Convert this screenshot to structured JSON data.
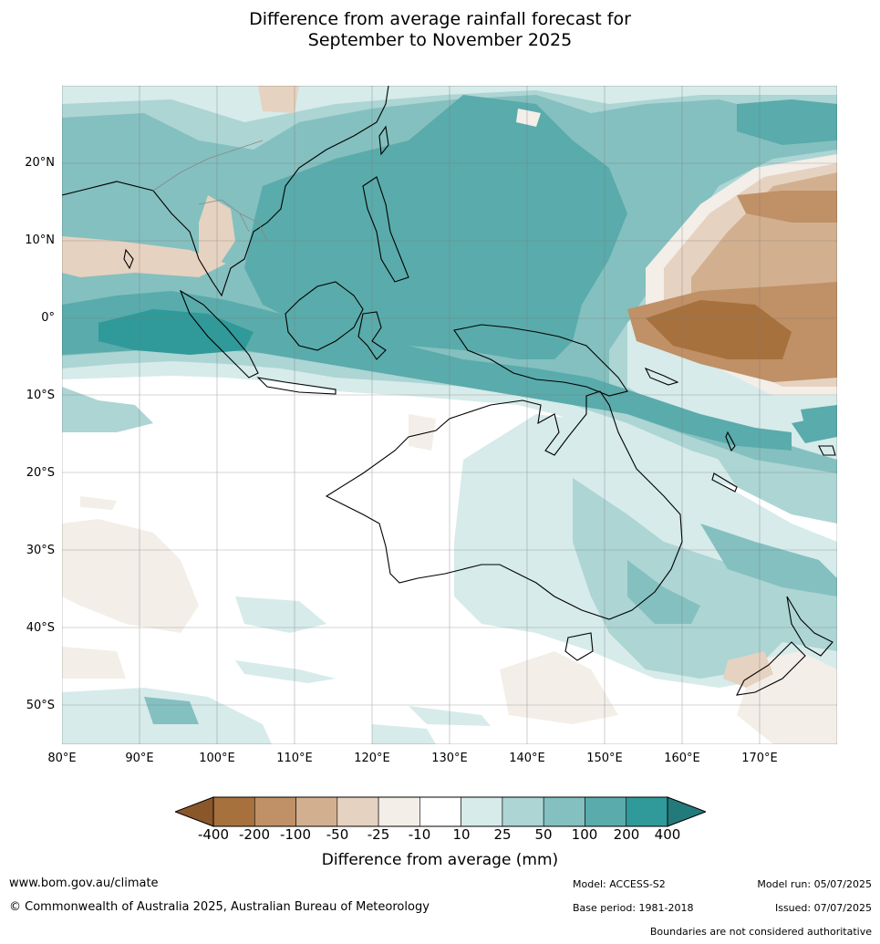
{
  "title_line1": "Difference from average rainfall forecast for",
  "title_line2": "September to November 2025",
  "lat_labels": [
    "20°N",
    "10°N",
    "0°",
    "10°S",
    "20°S",
    "30°S",
    "40°S",
    "50°S"
  ],
  "lon_labels": [
    "80°E",
    "90°E",
    "100°E",
    "110°E",
    "120°E",
    "130°E",
    "140°E",
    "150°E",
    "160°E",
    "170°E"
  ],
  "colorbar": {
    "title": "Difference from average (mm)",
    "tick_labels": [
      "-400",
      "-200",
      "-100",
      "-50",
      "-25",
      "-10",
      "10",
      "25",
      "50",
      "100",
      "200",
      "400"
    ],
    "colors": [
      "#a7713d",
      "#c09066",
      "#d2b08f",
      "#e6d2c0",
      "#f3eee8",
      "#ffffff",
      "#d6ebea",
      "#acd5d4",
      "#84c0bf",
      "#5aabab",
      "#2f9a99"
    ],
    "under_color": "#8a572b",
    "over_color": "#237a7a"
  },
  "map_colors": {
    "ocean_neutral": "#ffffff",
    "coast": "#000000",
    "boundaries": "#888888",
    "grid": "#777777"
  },
  "footer": {
    "website": "www.bom.gov.au/climate",
    "copyright": "© Commonwealth of Australia 2025, Australian Bureau of Meteorology",
    "model": "Model: ACCESS-S2",
    "base_period": "Base period: 1981-2018",
    "model_run": "Model run: 05/07/2025",
    "issued": "Issued: 07/07/2025",
    "disclaimer": "Boundaries are not considered authoritative"
  }
}
